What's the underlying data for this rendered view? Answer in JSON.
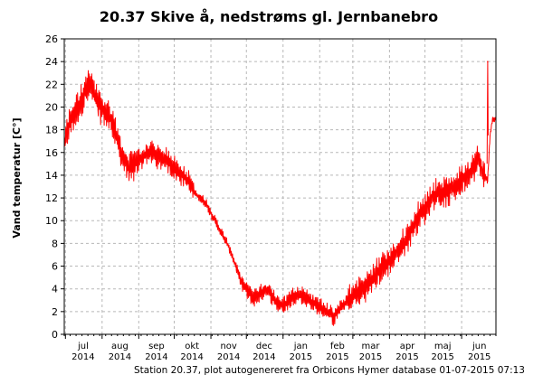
{
  "chart_data": {
    "type": "line",
    "title": "20.37 Skive å, nedstrøms gl. Jernbanebro",
    "ylabel": "Vand temperatur [C°]",
    "xlabel": "",
    "ylim": [
      0,
      26
    ],
    "yticks": [
      0,
      2,
      4,
      6,
      8,
      10,
      12,
      14,
      16,
      18,
      20,
      22,
      24,
      26
    ],
    "xlim": [
      0,
      365
    ],
    "x_ticks": [
      {
        "month": "jul",
        "year": "2014",
        "pos": 16
      },
      {
        "month": "aug",
        "year": "2014",
        "pos": 47
      },
      {
        "month": "sep",
        "year": "2014",
        "pos": 78
      },
      {
        "month": "okt",
        "year": "2014",
        "pos": 108
      },
      {
        "month": "nov",
        "year": "2014",
        "pos": 139
      },
      {
        "month": "dec",
        "year": "2014",
        "pos": 169
      },
      {
        "month": "jan",
        "year": "2015",
        "pos": 200
      },
      {
        "month": "feb",
        "year": "2015",
        "pos": 231
      },
      {
        "month": "mar",
        "year": "2015",
        "pos": 259
      },
      {
        "month": "apr",
        "year": "2015",
        "pos": 290
      },
      {
        "month": "maj",
        "year": "2015",
        "pos": 320
      },
      {
        "month": "jun",
        "year": "2015",
        "pos": 351
      }
    ],
    "grid": true,
    "color": "#ff0000",
    "series": [
      {
        "name": "",
        "x": [
          0,
          4,
          9,
          14,
          18,
          22,
          26,
          30,
          35,
          40,
          45,
          50,
          55,
          60,
          65,
          70,
          75,
          80,
          85,
          90,
          95,
          100,
          105,
          110,
          115,
          120,
          125,
          130,
          135,
          140,
          145,
          150,
          155,
          160,
          165,
          170,
          175,
          180,
          185,
          190,
          195,
          200,
          205,
          210,
          215,
          220,
          225,
          228,
          231,
          235,
          240,
          245,
          250,
          255,
          260,
          265,
          270,
          275,
          280,
          285,
          290,
          295,
          300,
          305,
          310,
          315,
          320,
          325,
          330,
          335,
          340,
          345,
          348,
          350,
          352,
          354,
          356,
          358,
          360,
          362,
          365
        ],
        "y": [
          16.5,
          18.5,
          19.5,
          20.5,
          21.5,
          22.0,
          21.0,
          20.0,
          19.5,
          19.0,
          17.0,
          15.5,
          14.5,
          15.0,
          15.5,
          16.0,
          16.0,
          15.5,
          15.5,
          15.0,
          14.5,
          14.0,
          13.5,
          12.5,
          12.0,
          11.5,
          10.5,
          9.5,
          8.5,
          7.5,
          6.0,
          4.5,
          3.8,
          3.2,
          3.5,
          4.0,
          3.5,
          2.8,
          2.5,
          3.0,
          3.5,
          3.5,
          3.2,
          2.8,
          2.5,
          2.2,
          1.8,
          1.5,
          2.0,
          2.5,
          3.0,
          3.5,
          3.8,
          4.2,
          4.8,
          5.5,
          6.0,
          6.5,
          7.0,
          7.8,
          8.5,
          9.5,
          10.5,
          11.0,
          12.0,
          12.5,
          12.5,
          12.5,
          13.0,
          13.5,
          14.0,
          14.5,
          15.0,
          15.5,
          15.0,
          14.0,
          14.0,
          13.5,
          17.5,
          18.8,
          19.0
        ]
      }
    ],
    "annotations": {
      "peak": {
        "x": 358,
        "y": 24.0
      }
    },
    "footer": "Station 20.37, plot autogenereret fra Orbicons Hymer database 01-07-2015 07:13"
  }
}
